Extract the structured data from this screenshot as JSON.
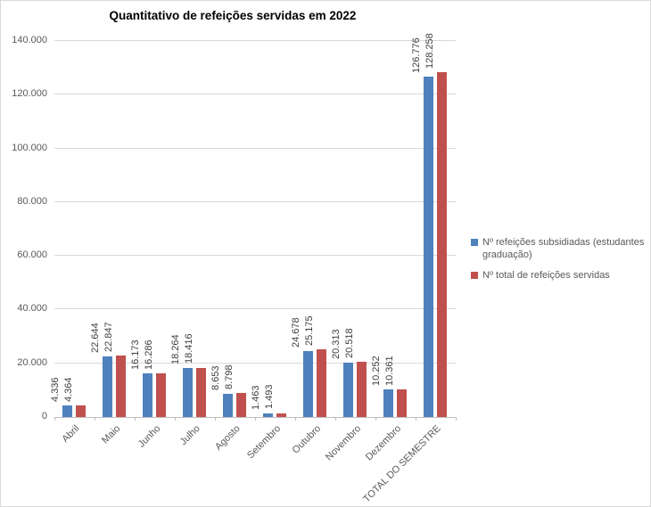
{
  "chart_data": {
    "type": "bar",
    "title": "Quantitativo de refeições servidas em 2022",
    "categories": [
      "Abril",
      "Maio",
      "Junho",
      "Julho",
      "Agosto",
      "Setembro",
      "Outubro",
      "Novembro",
      "Dezembro",
      "TOTAL DO SEMESTRE"
    ],
    "series": [
      {
        "name": "Nº refeições subsidiadas (estudantes graduação)",
        "color": "#4F81BD",
        "values": [
          4336,
          22644,
          16173,
          18264,
          8653,
          1463,
          24678,
          20313,
          10252,
          126776
        ],
        "labels": [
          "4.336",
          "22.644",
          "16.173",
          "18.264",
          "8.653",
          "1.463",
          "24.678",
          "20.313",
          "10.252",
          "126.776"
        ]
      },
      {
        "name": "Nº total de refeições servidas",
        "color": "#C0504D",
        "values": [
          4364,
          22847,
          16286,
          18416,
          8798,
          1493,
          25175,
          20518,
          10361,
          128258
        ],
        "labels": [
          "4.364",
          "22.847",
          "16.286",
          "18.416",
          "8.798",
          "1.493",
          "25.175",
          "20.518",
          "10.361",
          "128.258"
        ]
      }
    ],
    "ylim": [
      0,
      140000
    ],
    "yticks": [
      0,
      20000,
      40000,
      60000,
      80000,
      100000,
      120000,
      140000
    ],
    "ytick_labels": [
      "0",
      "20.000",
      "40.000",
      "60.000",
      "80.000",
      "100.000",
      "120.000",
      "140.000"
    ],
    "grid": "horizontal",
    "legend_position": "right",
    "data_labels": "rotated-vertical",
    "xlabel": "",
    "ylabel": ""
  },
  "colors": {
    "series_blue": "#4F81BD",
    "series_red": "#C0504D",
    "gridline": "#d9d9d9",
    "axis_text": "#595959",
    "title_text": "#000000"
  }
}
